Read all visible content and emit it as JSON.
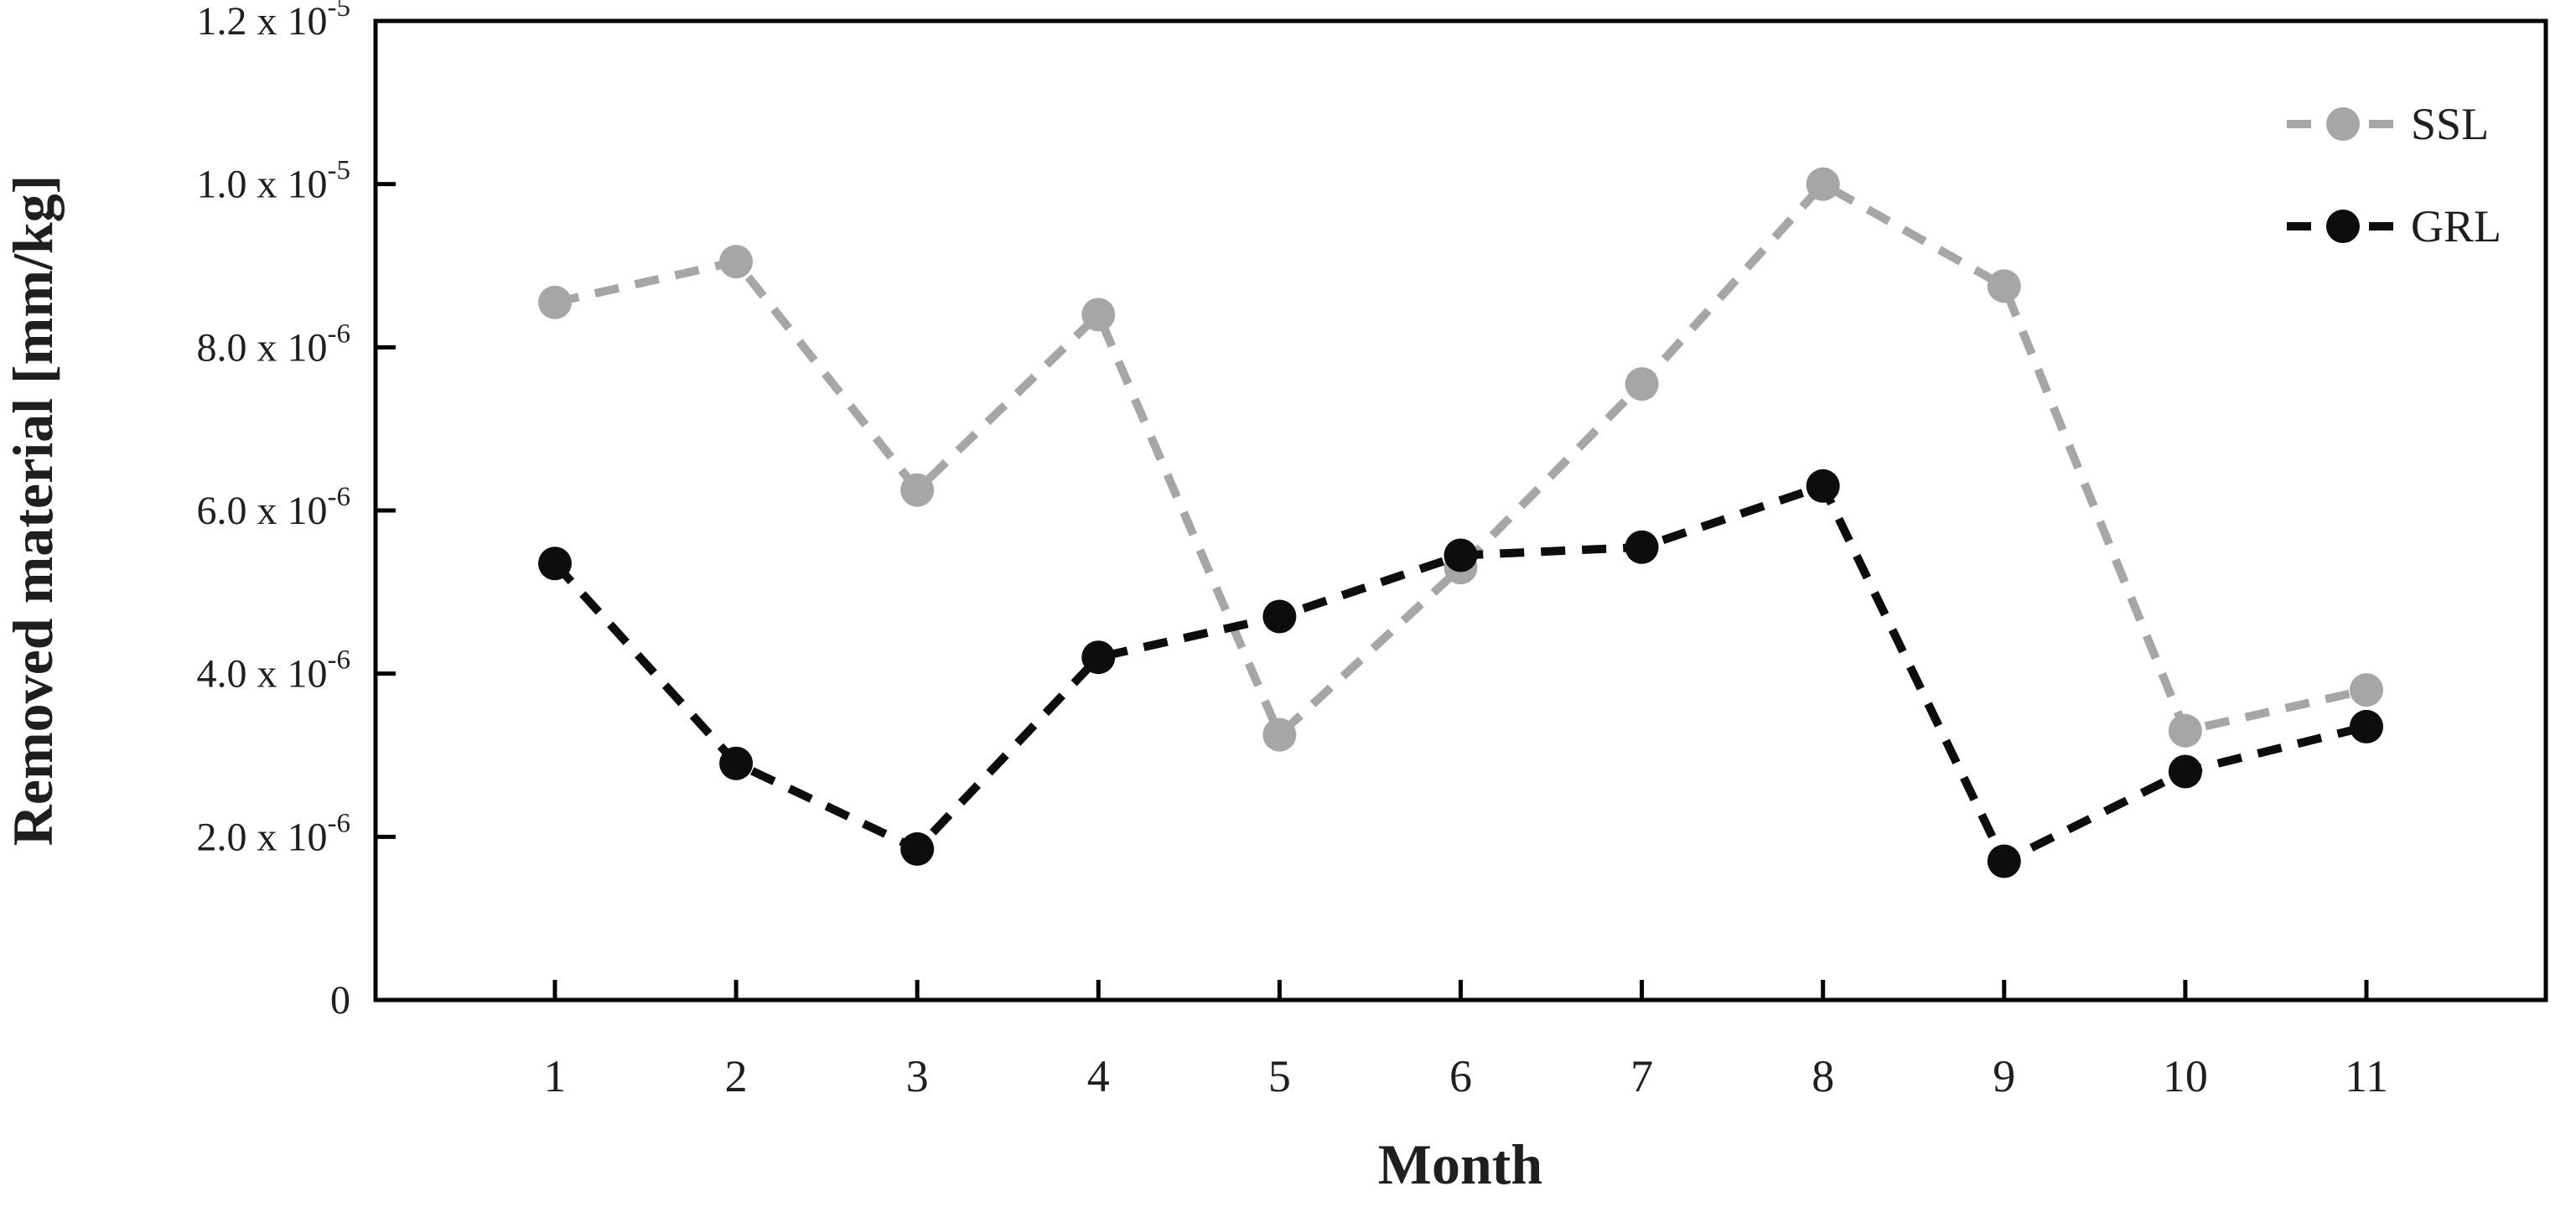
{
  "chart_data": {
    "type": "line",
    "title": "",
    "xlabel": "Month",
    "ylabel": "Removed material [mm/kg]",
    "categories": [
      1,
      2,
      3,
      4,
      5,
      6,
      7,
      8,
      9,
      10,
      11
    ],
    "series": [
      {
        "name": "SSL",
        "color": "#a6a6a6",
        "marker": "circle",
        "line_style": "dashed",
        "values": [
          8.55e-06,
          9.05e-06,
          6.25e-06,
          8.4e-06,
          3.25e-06,
          5.3e-06,
          7.55e-06,
          1e-05,
          8.75e-06,
          3.3e-06,
          3.8e-06
        ]
      },
      {
        "name": "GRL",
        "color": "#0d0d0d",
        "marker": "circle",
        "line_style": "dashed",
        "values": [
          5.35e-06,
          2.9e-06,
          1.85e-06,
          4.2e-06,
          4.7e-06,
          5.45e-06,
          5.55e-06,
          6.3e-06,
          1.7e-06,
          2.8e-06,
          3.35e-06
        ]
      }
    ],
    "ylim": [
      0,
      1.2e-05
    ],
    "y_ticks": [
      {
        "value": 0,
        "label": "0"
      },
      {
        "value": 2e-06,
        "mantissa": "2.0",
        "exponent": "-6"
      },
      {
        "value": 4e-06,
        "mantissa": "4.0",
        "exponent": "-6"
      },
      {
        "value": 6e-06,
        "mantissa": "6.0",
        "exponent": "-6"
      },
      {
        "value": 8e-06,
        "mantissa": "8.0",
        "exponent": "-6"
      },
      {
        "value": 1e-05,
        "mantissa": "1.0",
        "exponent": "-5"
      },
      {
        "value": 1.2e-05,
        "mantissa": "1.2",
        "exponent": "-5"
      }
    ],
    "scientific_separator": " x 10",
    "grid": false,
    "legend_position": "top-right",
    "plot_border": true,
    "axis_color": "#000000",
    "text_color": "#1f1f1f"
  }
}
